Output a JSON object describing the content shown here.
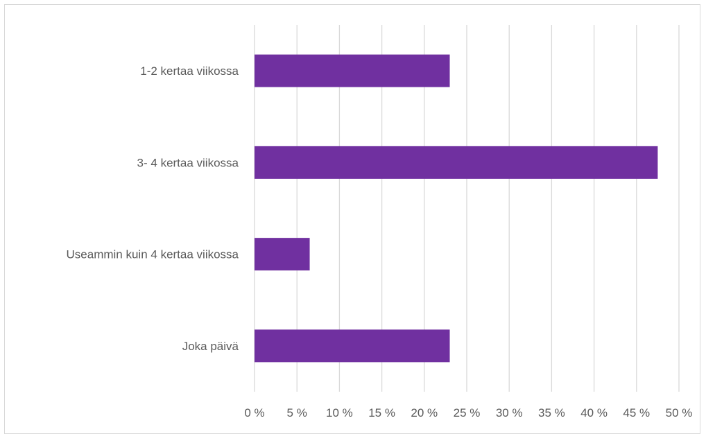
{
  "chart_data": {
    "type": "bar",
    "orientation": "horizontal",
    "title": "",
    "xlabel": "",
    "ylabel": "",
    "categories": [
      "1-2 kertaa viikossa",
      "3- 4 kertaa viikossa",
      "Useammin kuin 4 kertaa viikossa",
      "Joka päivä"
    ],
    "values": [
      23,
      47.5,
      6.5,
      23
    ],
    "xlim": [
      0,
      50
    ],
    "x_ticks": [
      0,
      5,
      10,
      15,
      20,
      25,
      30,
      35,
      40,
      45,
      50
    ],
    "x_tick_labels": [
      "0 %",
      "5 %",
      "10 %",
      "15 %",
      "20 %",
      "25 %",
      "30 %",
      "35 %",
      "40 %",
      "45 %",
      "50 %"
    ],
    "bar_color": "#7030a0",
    "gridlines": "vertical",
    "legend": "none"
  }
}
